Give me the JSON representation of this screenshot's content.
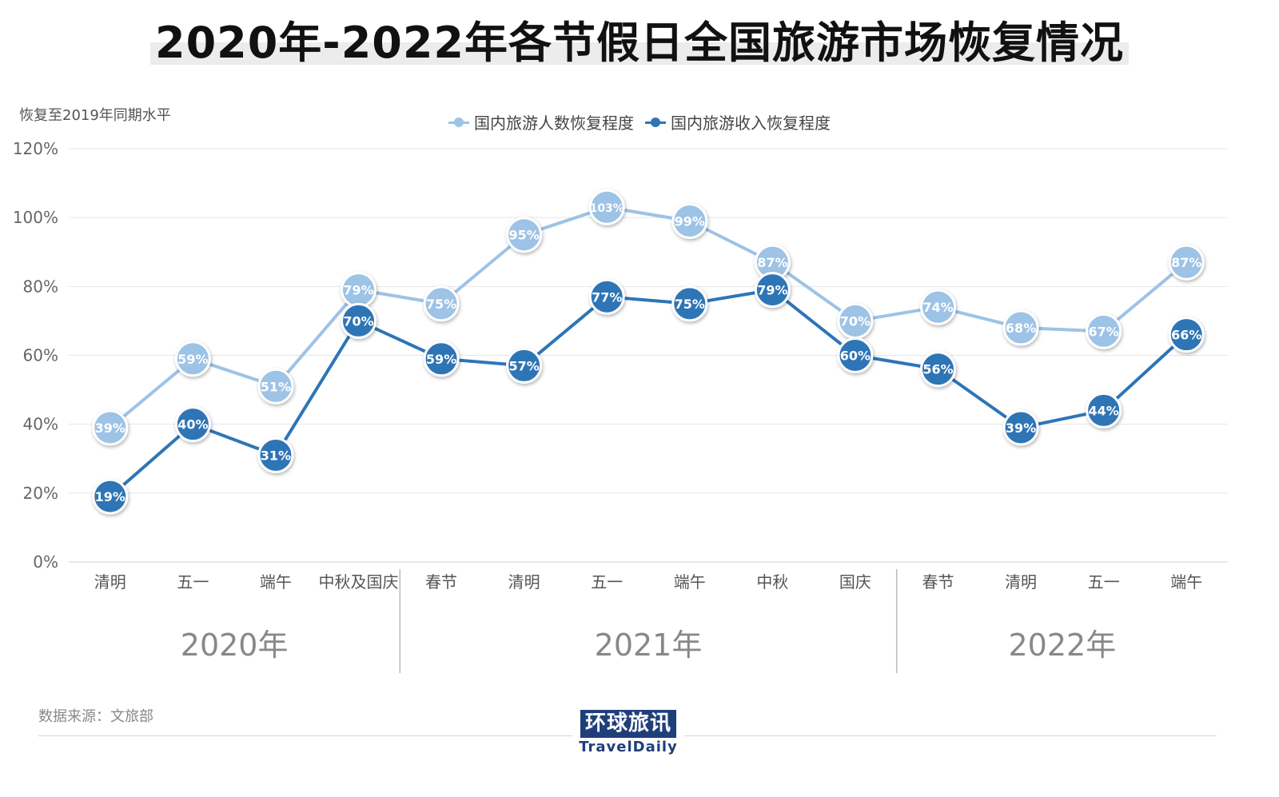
{
  "title": "2020年-2022年各节假日全国旅游市场恢复情况",
  "source": "数据来源：文旅部",
  "logo": {
    "cn": "环球旅讯",
    "en": "TravelDaily"
  },
  "chart_data": {
    "type": "line",
    "ylabel": "恢复至2019年同期水平",
    "ylim": [
      0,
      120
    ],
    "yticks": [
      "0%",
      "20%",
      "40%",
      "60%",
      "80%",
      "100%",
      "120%"
    ],
    "categories": [
      "清明",
      "五一",
      "端午",
      "中秋及国庆",
      "春节",
      "清明",
      "五一",
      "端午",
      "中秋",
      "国庆",
      "春节",
      "清明",
      "五一",
      "端午"
    ],
    "groups": [
      {
        "label": "2020年",
        "start": 0,
        "end": 3
      },
      {
        "label": "2021年",
        "start": 4,
        "end": 9
      },
      {
        "label": "2022年",
        "start": 10,
        "end": 13
      }
    ],
    "series": [
      {
        "name": "国内旅游人数恢复程度",
        "color": "#9dc3e6",
        "values": [
          39,
          59,
          51,
          79,
          75,
          95,
          103,
          99,
          87,
          70,
          74,
          68,
          67,
          87
        ]
      },
      {
        "name": "国内旅游收入恢复程度",
        "color": "#2e75b6",
        "values": [
          19,
          40,
          31,
          70,
          59,
          57,
          77,
          75,
          79,
          60,
          56,
          39,
          44,
          66
        ]
      }
    ],
    "legend": "top-center",
    "grid": true
  }
}
